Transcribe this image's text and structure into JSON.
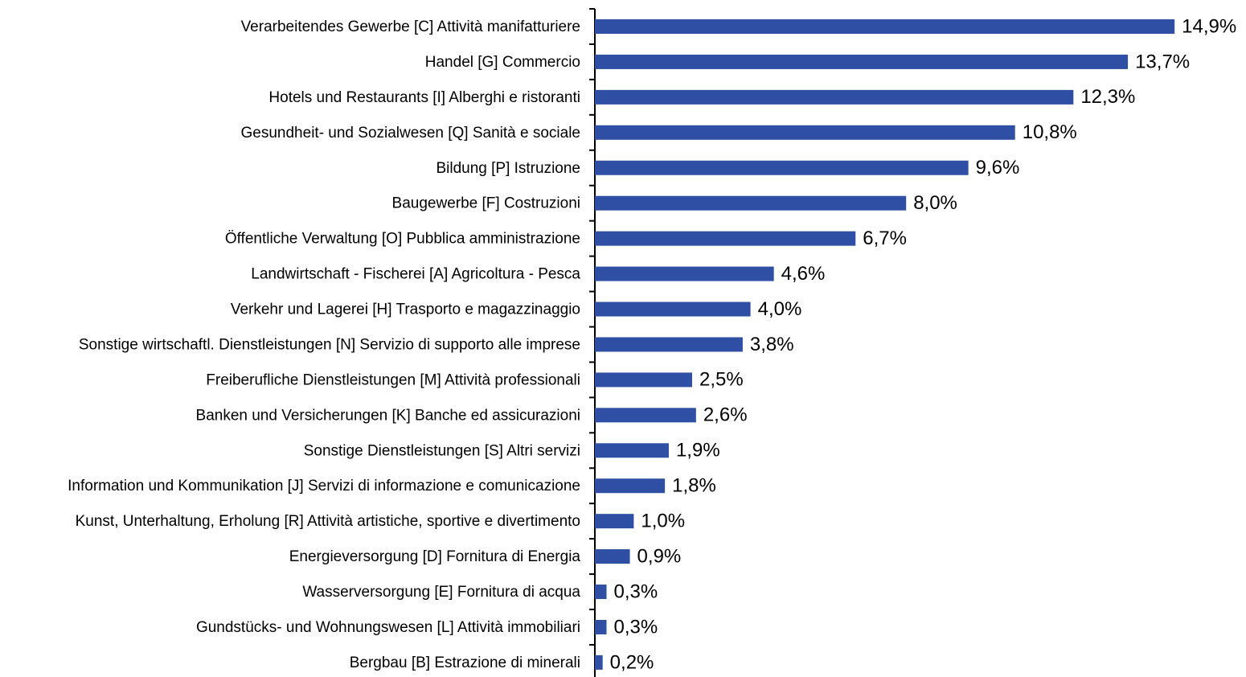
{
  "chart_data": {
    "type": "bar",
    "orientation": "horizontal",
    "color": "#2e4fa3",
    "categories": [
      "Verarbeitendes Gewerbe [C] Attività manifatturiere",
      "Handel [G] Commercio",
      "Hotels und Restaurants [I] Alberghi e ristoranti",
      "Gesundheit- und Sozialwesen [Q] Sanità e sociale",
      "Bildung [P] Istruzione",
      "Baugewerbe [F] Costruzioni",
      "Öffentliche Verwaltung [O] Pubblica amministrazione",
      "Landwirtschaft - Fischerei [A] Agricoltura - Pesca",
      "Verkehr und Lagerei [H] Trasporto e magazzinaggio",
      "Sonstige wirtschaftl. Dienstleistungen [N] Servizio di supporto alle imprese",
      "Freiberufliche Dienstleistungen [M] Attività professionali",
      "Banken und Versicherungen [K] Banche ed assicurazioni",
      "Sonstige Dienstleistungen [S] Altri servizi",
      "Information und Kommunikation [J] Servizi di informazione e comunicazione",
      "Kunst, Unterhaltung, Erholung [R] Attività artistiche, sportive e divertimento",
      "Energieversorgung [D] Fornitura di Energia",
      "Wasserversorgung [E] Fornitura di acqua",
      "Gundstücks- und Wohnungswesen [L] Attività immobiliari",
      "Bergbau [B] Estrazione di minerali"
    ],
    "values": [
      14.9,
      13.7,
      12.3,
      10.8,
      9.6,
      8.0,
      6.7,
      4.6,
      4.0,
      3.8,
      2.5,
      2.6,
      1.9,
      1.8,
      1.0,
      0.9,
      0.3,
      0.3,
      0.2
    ],
    "value_labels": [
      "14,9%",
      "13,7%",
      "12,3%",
      "10,8%",
      "9,6%",
      "8,0%",
      "6,7%",
      "4,6%",
      "4,0%",
      "3,8%",
      "2,5%",
      "2,6%",
      "1,9%",
      "1,8%",
      "1,0%",
      "0,9%",
      "0,3%",
      "0,3%",
      "0,2%"
    ]
  }
}
